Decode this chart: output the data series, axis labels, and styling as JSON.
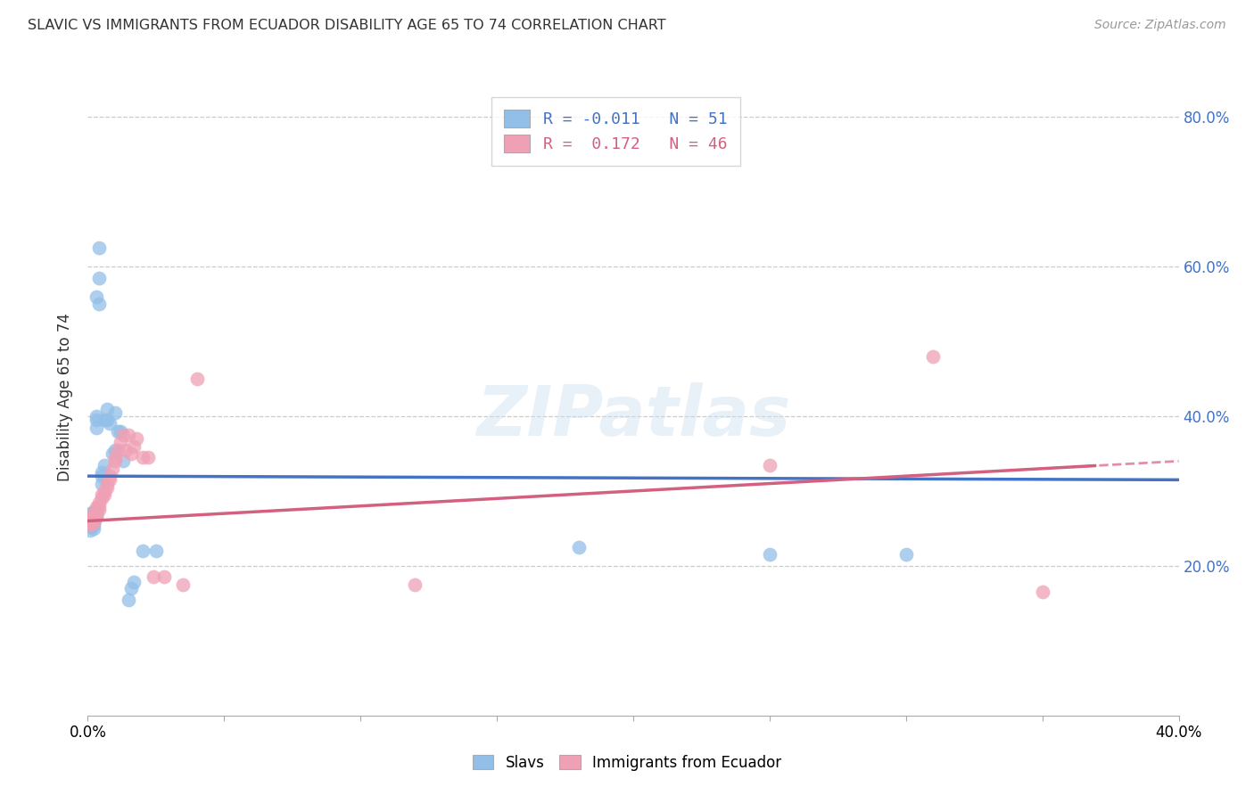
{
  "title": "SLAVIC VS IMMIGRANTS FROM ECUADOR DISABILITY AGE 65 TO 74 CORRELATION CHART",
  "source": "Source: ZipAtlas.com",
  "ylabel": "Disability Age 65 to 74",
  "slavs_label": "Slavs",
  "ecuador_label": "Immigrants from Ecuador",
  "legend_blue_R": "-0.011",
  "legend_blue_N": "51",
  "legend_pink_R": "0.172",
  "legend_pink_N": "46",
  "blue_scatter_color": "#92bfe8",
  "pink_scatter_color": "#f0a0b5",
  "blue_line_color": "#4472c4",
  "pink_line_color": "#d46080",
  "title_color": "#333333",
  "source_color": "#999999",
  "right_tick_color": "#4472c4",
  "ylabel_color": "#333333",
  "grid_color": "#cccccc",
  "background_color": "#ffffff",
  "xlim": [
    0.0,
    0.4
  ],
  "ylim": [
    0.0,
    0.85
  ],
  "slavs_x": [
    0.0005,
    0.0005,
    0.001,
    0.001,
    0.001,
    0.001,
    0.001,
    0.001,
    0.001,
    0.001,
    0.002,
    0.002,
    0.002,
    0.002,
    0.002,
    0.002,
    0.002,
    0.002,
    0.002,
    0.003,
    0.003,
    0.003,
    0.003,
    0.003,
    0.003,
    0.003,
    0.004,
    0.004,
    0.004,
    0.005,
    0.005,
    0.005,
    0.006,
    0.006,
    0.007,
    0.007,
    0.008,
    0.009,
    0.01,
    0.01,
    0.011,
    0.012,
    0.013,
    0.015,
    0.016,
    0.017,
    0.02,
    0.025,
    0.18,
    0.25,
    0.3
  ],
  "slavs_y": [
    0.26,
    0.255,
    0.26,
    0.268,
    0.258,
    0.262,
    0.252,
    0.248,
    0.27,
    0.265,
    0.258,
    0.265,
    0.268,
    0.272,
    0.255,
    0.26,
    0.265,
    0.25,
    0.258,
    0.265,
    0.27,
    0.275,
    0.395,
    0.4,
    0.385,
    0.56,
    0.585,
    0.625,
    0.55,
    0.31,
    0.32,
    0.325,
    0.335,
    0.395,
    0.395,
    0.41,
    0.39,
    0.35,
    0.355,
    0.405,
    0.38,
    0.38,
    0.34,
    0.155,
    0.17,
    0.178,
    0.22,
    0.22,
    0.225,
    0.215,
    0.215
  ],
  "ecuador_x": [
    0.0005,
    0.0005,
    0.001,
    0.001,
    0.001,
    0.001,
    0.001,
    0.002,
    0.002,
    0.002,
    0.002,
    0.003,
    0.003,
    0.003,
    0.004,
    0.004,
    0.004,
    0.005,
    0.005,
    0.006,
    0.006,
    0.007,
    0.007,
    0.008,
    0.008,
    0.009,
    0.01,
    0.01,
    0.011,
    0.012,
    0.013,
    0.014,
    0.015,
    0.016,
    0.017,
    0.018,
    0.02,
    0.022,
    0.024,
    0.028,
    0.035,
    0.04,
    0.12,
    0.25,
    0.31,
    0.35
  ],
  "ecuador_y": [
    0.26,
    0.262,
    0.258,
    0.265,
    0.262,
    0.258,
    0.255,
    0.27,
    0.265,
    0.262,
    0.258,
    0.278,
    0.268,
    0.272,
    0.28,
    0.285,
    0.275,
    0.29,
    0.295,
    0.3,
    0.295,
    0.31,
    0.305,
    0.32,
    0.315,
    0.33,
    0.34,
    0.345,
    0.355,
    0.365,
    0.375,
    0.355,
    0.375,
    0.35,
    0.36,
    0.37,
    0.345,
    0.345,
    0.185,
    0.185,
    0.175,
    0.45,
    0.175,
    0.335,
    0.48,
    0.165
  ]
}
